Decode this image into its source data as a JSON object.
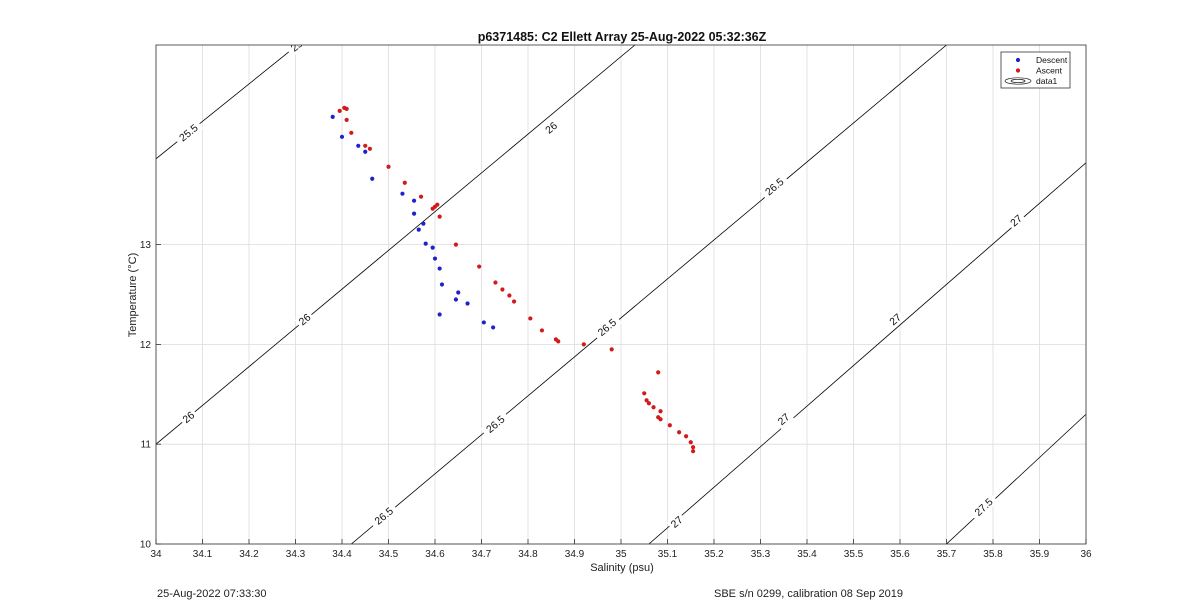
{
  "chart_data": {
    "type": "scatter",
    "title": "p6371485: C2 Ellett Array 25-Aug-2022 05:32:36Z",
    "xlabel": "Salinity (psu)",
    "ylabel": "Temperature (°C)",
    "xlim": [
      34,
      36
    ],
    "ylim": [
      10,
      15
    ],
    "xticks": [
      "34",
      "34.1",
      "34.2",
      "34.3",
      "34.4",
      "34.5",
      "34.6",
      "34.7",
      "34.8",
      "34.9",
      "35",
      "35.1",
      "35.2",
      "35.3",
      "35.4",
      "35.5",
      "35.6",
      "35.7",
      "35.8",
      "35.9",
      "36"
    ],
    "yticks": [
      "10",
      "11",
      "12",
      "13"
    ],
    "grid": true,
    "legend_position": "top-right",
    "legend": [
      "Descent",
      "Ascent",
      "data1"
    ],
    "colors": {
      "descent": "#1f22c8",
      "ascent": "#d11a1a",
      "contour": "#000000",
      "grid": "#dcdcdc"
    },
    "contours": [
      {
        "label": "25.5",
        "points": [
          [
            34,
            13.86
          ],
          [
            34.4,
            15.36
          ]
        ],
        "labels_at": [
          [
            34.07,
            14.12
          ],
          [
            34.31,
            15.02
          ]
        ]
      },
      {
        "label": "26",
        "points": [
          [
            34,
            11.0
          ],
          [
            35.03,
            15.0
          ]
        ],
        "labels_at": [
          [
            34.07,
            11.27
          ],
          [
            34.32,
            12.25
          ],
          [
            34.85,
            14.17
          ]
        ]
      },
      {
        "label": "26.5",
        "points": [
          [
            34.42,
            10.0
          ],
          [
            35.7,
            15.0
          ]
        ],
        "labels_at": [
          [
            34.49,
            10.28
          ],
          [
            34.73,
            11.2
          ],
          [
            34.97,
            12.17
          ],
          [
            35.33,
            13.58
          ],
          [
            35.74,
            15.22
          ]
        ]
      },
      {
        "label": "27",
        "points": [
          [
            35.06,
            10.0
          ],
          [
            36.0,
            13.82
          ]
        ],
        "labels_at": [
          [
            35.12,
            10.22
          ],
          [
            35.35,
            11.25
          ],
          [
            35.59,
            12.25
          ],
          [
            35.85,
            13.24
          ]
        ]
      },
      {
        "label": "27.5",
        "points": [
          [
            35.7,
            10.0
          ],
          [
            36.0,
            11.3
          ]
        ],
        "labels_at": [
          [
            35.78,
            10.37
          ]
        ]
      }
    ],
    "series": [
      {
        "name": "Descent",
        "points": [
          [
            34.38,
            14.28
          ],
          [
            34.4,
            14.08
          ],
          [
            34.435,
            13.99
          ],
          [
            34.45,
            13.93
          ],
          [
            34.465,
            13.66
          ],
          [
            34.53,
            13.51
          ],
          [
            34.555,
            13.44
          ],
          [
            34.555,
            13.31
          ],
          [
            34.565,
            13.15
          ],
          [
            34.575,
            13.21
          ],
          [
            34.58,
            13.01
          ],
          [
            34.595,
            12.97
          ],
          [
            34.6,
            12.86
          ],
          [
            34.61,
            12.76
          ],
          [
            34.615,
            12.6
          ],
          [
            34.65,
            12.52
          ],
          [
            34.645,
            12.45
          ],
          [
            34.67,
            12.41
          ],
          [
            34.61,
            12.3
          ],
          [
            34.705,
            12.22
          ],
          [
            34.725,
            12.17
          ]
        ]
      },
      {
        "name": "Ascent",
        "points": [
          [
            34.395,
            14.34
          ],
          [
            34.405,
            14.37
          ],
          [
            34.41,
            14.36
          ],
          [
            34.41,
            14.25
          ],
          [
            34.42,
            14.12
          ],
          [
            34.45,
            13.99
          ],
          [
            34.46,
            13.96
          ],
          [
            34.5,
            13.78
          ],
          [
            34.535,
            13.62
          ],
          [
            34.57,
            13.48
          ],
          [
            34.595,
            13.36
          ],
          [
            34.6,
            13.38
          ],
          [
            34.605,
            13.4
          ],
          [
            34.61,
            13.28
          ],
          [
            34.645,
            13.0
          ],
          [
            34.695,
            12.78
          ],
          [
            34.73,
            12.62
          ],
          [
            34.745,
            12.55
          ],
          [
            34.76,
            12.49
          ],
          [
            34.77,
            12.43
          ],
          [
            34.805,
            12.26
          ],
          [
            34.83,
            12.14
          ],
          [
            34.86,
            12.05
          ],
          [
            34.865,
            12.03
          ],
          [
            34.92,
            12.0
          ],
          [
            34.98,
            11.95
          ],
          [
            35.08,
            11.72
          ],
          [
            35.05,
            11.51
          ],
          [
            35.055,
            11.44
          ],
          [
            35.06,
            11.41
          ],
          [
            35.07,
            11.37
          ],
          [
            35.085,
            11.33
          ],
          [
            35.08,
            11.27
          ],
          [
            35.085,
            11.25
          ],
          [
            35.105,
            11.19
          ],
          [
            35.125,
            11.12
          ],
          [
            35.14,
            11.08
          ],
          [
            35.15,
            11.02
          ],
          [
            35.155,
            10.97
          ],
          [
            35.155,
            10.93
          ]
        ]
      }
    ]
  },
  "footer": {
    "left": "25-Aug-2022 07:33:30",
    "right": "SBE s/n 0299, calibration 08 Sep 2019"
  }
}
